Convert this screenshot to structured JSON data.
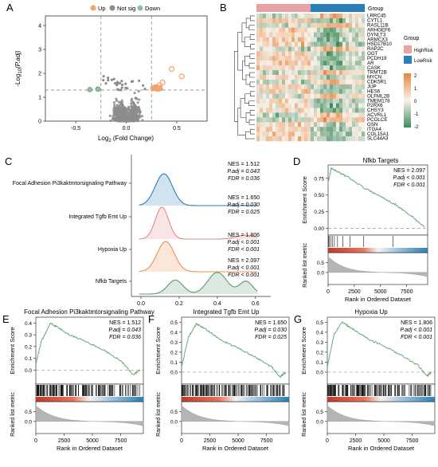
{
  "panel_letters": {
    "a": "A",
    "b": "B",
    "c": "C",
    "d": "D",
    "e": "E",
    "f": "F",
    "g": "G"
  },
  "colors": {
    "up": "#f0a46e",
    "notsig": "#8c8c8c",
    "down": "#8fbf9f",
    "high_risk": "#e8a1a4",
    "low_risk": "#2a7fb8",
    "heat_pos": "#e8843c",
    "heat_mid": "#f7f3ec",
    "heat_neg": "#3f8a5a",
    "ridge": [
      "#2a7fb8",
      "#e58a8a",
      "#ef8f54",
      "#5a9a6e"
    ],
    "es_line": "#6aa87a"
  },
  "panel_a": {
    "legend": [
      "Up",
      "Not sig",
      "Down"
    ],
    "ylabel_main": "-Log",
    "ylabel_sub": "10",
    "ylabel_tail": "(P.adj)",
    "xlabel_main": "Log",
    "xlabel_sub": "2",
    "xlabel_tail": " (Fold Change)"
  },
  "panel_b": {
    "group_label": "Group",
    "legend_title": "Group",
    "legend_items": [
      "HighRisk",
      "LowRisk"
    ],
    "genes": [
      "LRRC45",
      "CYTL1",
      "RASL11B",
      "ARHGEF6",
      "DYNLT3",
      "ARMCX3",
      "HSD17B10",
      "RAP2C",
      "OGT",
      "PCDH19",
      "AR",
      "CASK",
      "TRMT2B",
      "MYCN",
      "CDK5R1",
      "JUP",
      "HES6",
      "OLFML2B",
      "TMEM178",
      "P2RX6",
      "CHSY3",
      "ACVRL1",
      "PCOLCE",
      "GSN",
      "ITGA4",
      "COL15A1",
      "SLC44A3"
    ],
    "scale_ticks": [
      "2",
      "1",
      "0",
      "-1",
      "-2"
    ]
  },
  "panel_c": {
    "pathways": [
      "Focal Adhesion Pi3kaktmtorsignaling Pathway",
      "Integrated Tgfb Emt Up",
      "Hypoxia Up",
      "Nfkb Targets"
    ],
    "stats": [
      [
        "NES = 1.512",
        "P.adj = 0.043",
        "FDR = 0.036"
      ],
      [
        "NES = 1.650",
        "P.adj = 0.030",
        "FDR = 0.025"
      ],
      [
        "NES = 1.806",
        "P.adj < 0.001",
        "FDR < 0.001"
      ],
      [
        "NES = 2.097",
        "P.adj < 0.001",
        "FDR < 0.001"
      ]
    ],
    "xticks": [
      "0.0",
      "0.2",
      "0.4",
      "0.6"
    ]
  },
  "gsea_common": {
    "ylabel_es": "Enrichment Score",
    "ylabel_rank": "Ranked list metric",
    "xlabel": "Rank in Ordered Dataset",
    "xticks": [
      "0",
      "2500",
      "5000",
      "7500"
    ]
  },
  "panel_d": {
    "title": "Nfkb Targets",
    "stats": [
      "NES = 2.097",
      "P.adj < 0.001",
      "FDR < 0.001"
    ],
    "yticks": [
      "0.75",
      "0.50",
      "0.25",
      "0.00"
    ],
    "rank_ticks": [
      "0.5",
      "0.0"
    ]
  },
  "panel_e": {
    "title": "Focal Adhesion Pi3kaktmtorsignaling Pathway",
    "stats": [
      "NES = 1.512",
      "P.adj = 0.043",
      "FDR = 0.036"
    ],
    "yticks": [
      "0.4",
      "0.3",
      "0.2",
      "0.1",
      "0.0"
    ],
    "rank_ticks": [
      "0.5",
      "0.0"
    ]
  },
  "panel_f": {
    "title": "Integrated Tgfb Emt Up",
    "stats": [
      "NES = 1.650",
      "P.adj = 0.030",
      "FDR = 0.025"
    ],
    "yticks": [
      "0.5",
      "0.4",
      "0.3",
      "0.2",
      "0.1",
      "0.0"
    ],
    "rank_ticks": [
      "0.5",
      "0.0"
    ]
  },
  "panel_g": {
    "title": "Hypoxia Up",
    "stats": [
      "NES = 1.806",
      "P.adj < 0.001",
      "FDR < 0.001"
    ],
    "yticks": [
      "0.5",
      "0.4",
      "0.3",
      "0.2",
      "0.1",
      "0.0"
    ],
    "rank_ticks": [
      "0.5",
      "0.0"
    ]
  },
  "chart_data": [
    {
      "type": "scatter",
      "panel": "A",
      "xticks": [
        "-0.5",
        "0.0",
        "0.5"
      ],
      "yticks": [
        "4",
        "3",
        "2",
        "1",
        "0"
      ],
      "xlim": [
        -0.8,
        0.8
      ],
      "ylim": [
        0,
        4.4
      ],
      "thresholds": {
        "x": [
          -0.25,
          0.25
        ],
        "y": 1.3
      },
      "series": [
        {
          "name": "Up",
          "points": [
            [
              0.55,
              1.87
            ],
            [
              0.45,
              2.18
            ],
            [
              0.36,
              1.62
            ],
            [
              0.33,
              1.5
            ],
            [
              0.3,
              1.42
            ],
            [
              0.27,
              1.38
            ],
            [
              0.32,
              1.35
            ]
          ]
        },
        {
          "name": "Down",
          "points": [
            [
              -0.36,
              1.32
            ],
            [
              -0.28,
              1.34
            ]
          ]
        }
      ]
    },
    {
      "type": "heatmap",
      "panel": "B",
      "rows": 27,
      "groups": [
        "HighRisk",
        "LowRisk"
      ],
      "scale": [
        -2,
        2
      ]
    },
    {
      "type": "area",
      "panel": "C",
      "xlim": [
        -0.05,
        0.68
      ],
      "series": [
        {
          "name": "Focal Adhesion Pi3kaktmtorsignaling Pathway",
          "peaks": [
            [
              0.12,
              1.0,
              0.045
            ]
          ]
        },
        {
          "name": "Integrated Tgfb Emt Up",
          "peaks": [
            [
              0.11,
              1.0,
              0.035
            ],
            [
              0.55,
              0.12,
              0.05
            ]
          ]
        },
        {
          "name": "Hypoxia Up",
          "peaks": [
            [
              0.13,
              1.0,
              0.045
            ]
          ]
        },
        {
          "name": "Nfkb Targets",
          "peaks": [
            [
              0.18,
              0.55,
              0.04
            ],
            [
              0.4,
              0.85,
              0.05
            ],
            [
              0.55,
              0.5,
              0.035
            ]
          ]
        }
      ]
    },
    {
      "type": "line",
      "panels": [
        "D",
        "E",
        "F",
        "G"
      ],
      "xlim": [
        0,
        9500
      ],
      "es_curves": {
        "D": {
          "ylim": [
            -0.1,
            0.95
          ],
          "points": [
            [
              0,
              0.68
            ],
            [
              300,
              0.9
            ],
            [
              1000,
              0.84
            ],
            [
              2000,
              0.76
            ],
            [
              3500,
              0.6
            ],
            [
              5000,
              0.48
            ],
            [
              6500,
              0.35
            ],
            [
              8000,
              0.18
            ],
            [
              9200,
              0.02
            ]
          ]
        },
        "E": {
          "ylim": [
            -0.12,
            0.45
          ],
          "points": [
            [
              0,
              0.05
            ],
            [
              500,
              0.25
            ],
            [
              1300,
              0.4
            ],
            [
              1800,
              0.37
            ],
            [
              3000,
              0.3
            ],
            [
              4500,
              0.24
            ],
            [
              6000,
              0.17
            ],
            [
              7500,
              0.08
            ],
            [
              8600,
              -0.04
            ],
            [
              9200,
              0.0
            ]
          ]
        },
        "F": {
          "ylim": [
            -0.12,
            0.55
          ],
          "points": [
            [
              0,
              0.05
            ],
            [
              600,
              0.35
            ],
            [
              1300,
              0.48
            ],
            [
              2000,
              0.44
            ],
            [
              3500,
              0.32
            ],
            [
              5000,
              0.24
            ],
            [
              6500,
              0.15
            ],
            [
              8000,
              0.05
            ],
            [
              8700,
              -0.05
            ],
            [
              9200,
              0.0
            ]
          ]
        },
        "G": {
          "ylim": [
            -0.12,
            0.55
          ],
          "points": [
            [
              0,
              0.05
            ],
            [
              600,
              0.38
            ],
            [
              1300,
              0.5
            ],
            [
              2000,
              0.45
            ],
            [
              3500,
              0.34
            ],
            [
              5000,
              0.26
            ],
            [
              6500,
              0.17
            ],
            [
              8000,
              0.07
            ],
            [
              8800,
              -0.04
            ],
            [
              9200,
              0.0
            ]
          ]
        }
      }
    }
  ]
}
